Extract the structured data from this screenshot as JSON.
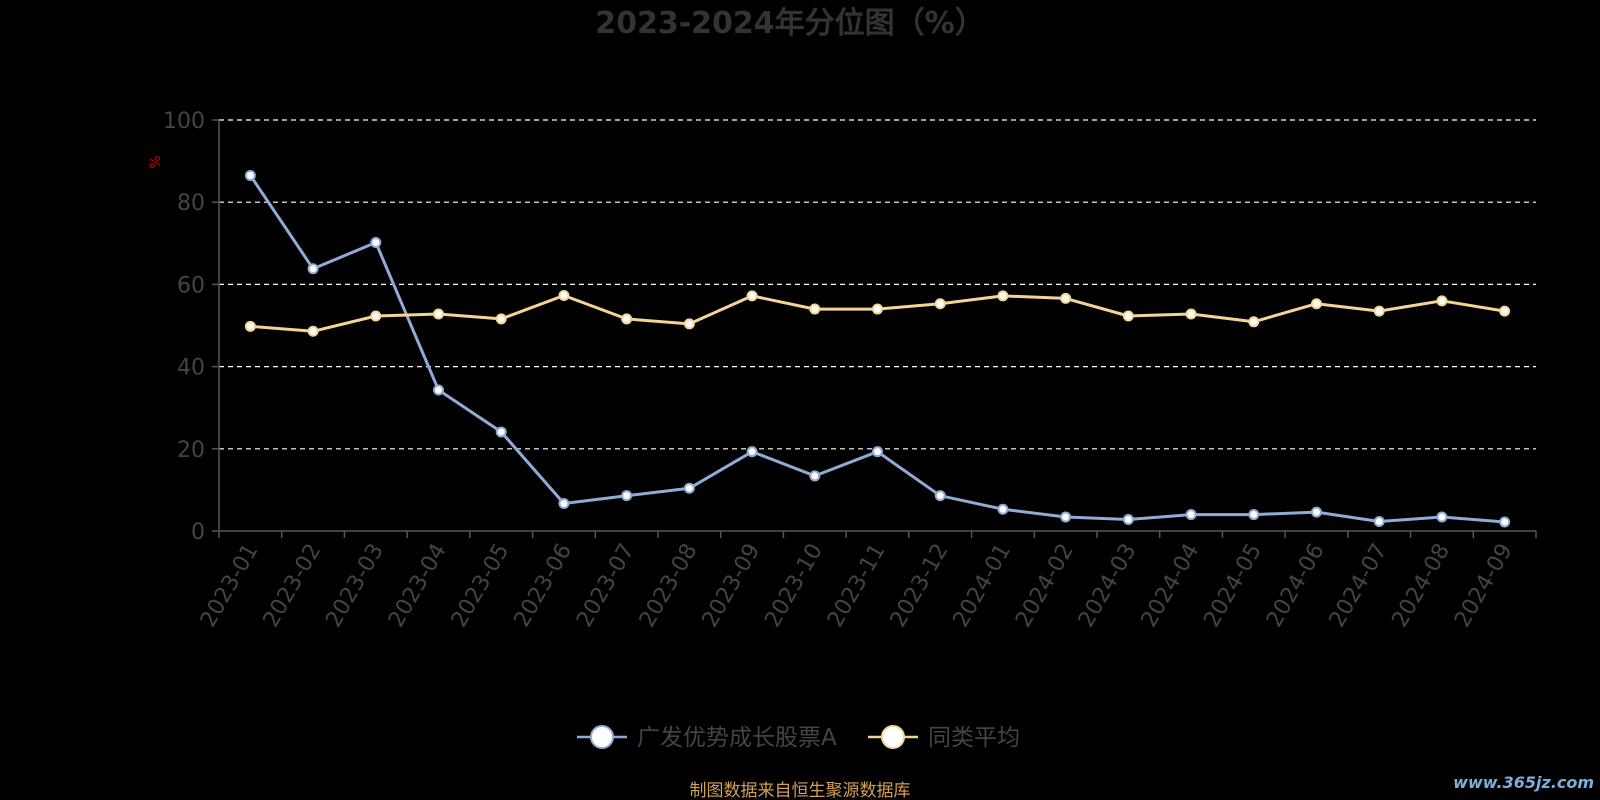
{
  "chart_data": {
    "type": "line",
    "title": "2023-2024年分位图（%）",
    "ylabel": "%",
    "xlabel": "",
    "ylim": [
      0,
      100
    ],
    "yticks": [
      0,
      20,
      40,
      60,
      80,
      100
    ],
    "grid": true,
    "legend_position": "bottom-center",
    "categories": [
      "2023-01",
      "2023-02",
      "2023-03",
      "2023-04",
      "2023-05",
      "2023-06",
      "2023-07",
      "2023-08",
      "2023-09",
      "2023-10",
      "2023-11",
      "2023-12",
      "2024-01",
      "2024-02",
      "2024-03",
      "2024-04",
      "2024-05",
      "2024-06",
      "2024-07",
      "2024-08",
      "2024-09"
    ],
    "series": [
      {
        "name": "广发优势成长股票A",
        "color": "#8fabd6",
        "values": [
          86.5,
          63.8,
          70.2,
          34.3,
          24.1,
          6.7,
          8.6,
          10.4,
          19.3,
          13.4,
          19.3,
          8.6,
          5.3,
          3.4,
          2.8,
          4.0,
          4.0,
          4.6,
          2.3,
          3.4,
          2.2
        ]
      },
      {
        "name": "同类平均",
        "color": "#f4d595",
        "values": [
          49.8,
          48.6,
          52.3,
          52.8,
          51.6,
          57.3,
          51.6,
          50.4,
          57.2,
          54.0,
          54.0,
          55.3,
          57.2,
          56.6,
          52.3,
          52.8,
          50.9,
          55.3,
          53.5,
          56.0,
          53.5
        ]
      }
    ]
  },
  "footer": {
    "source": "制图数据来自恒生聚源数据库",
    "watermark": "www.365jz.com"
  },
  "colors": {
    "background": "#000000",
    "axis": "#555555",
    "tick_text": "#444444",
    "grid": "#ffffff",
    "title": "#333333",
    "ylabel": "#cc0000",
    "source": "#d4a055",
    "watermark": "#7aaedc"
  }
}
